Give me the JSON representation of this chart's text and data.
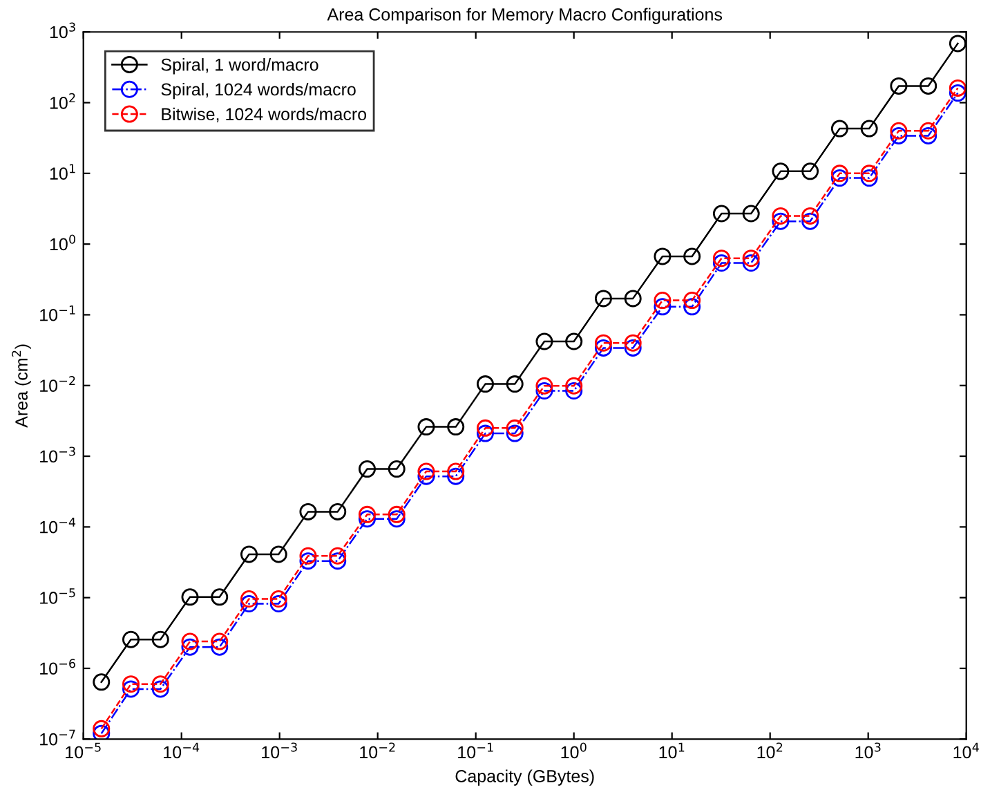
{
  "chart_data": {
    "type": "line",
    "title": "Area Comparison for Memory Macro Configurations",
    "xlabel": "Capacity (GBytes)",
    "ylabel": "Area (cm$^{2}$)",
    "log": "xy",
    "grid": false,
    "legend": "top left",
    "marker": "circle",
    "x": [
      1.526e-05,
      3.052e-05,
      6.104e-05,
      0.0001221,
      0.0002441,
      0.0004883,
      0.0009766,
      0.001953,
      0.003906,
      0.007813,
      0.015625,
      0.03125,
      0.0625,
      0.125,
      0.25,
      0.5,
      1,
      2,
      4,
      8,
      16,
      32,
      64,
      128,
      256,
      512,
      1024,
      2048,
      4096,
      8192
    ],
    "series": [
      {
        "name": "Spiral, 1 word/macro",
        "color": "#000000",
        "line_style": "solid",
        "values": [
          6.4e-07,
          2.56e-06,
          2.56e-06,
          1.02e-05,
          1.02e-05,
          4.1e-05,
          4.1e-05,
          0.000164,
          0.000164,
          0.00066,
          0.00066,
          0.0026,
          0.0026,
          0.0105,
          0.0105,
          0.042,
          0.042,
          0.17,
          0.17,
          0.67,
          0.67,
          2.7,
          2.7,
          10.7,
          10.7,
          43,
          43,
          172,
          172,
          687
        ]
      },
      {
        "name": "Spiral, 1024 words/macro",
        "color": "#0000ff",
        "line_style": "dashdot",
        "values": [
          1.2e-07,
          5.1e-07,
          5.1e-07,
          2e-06,
          2e-06,
          8.2e-06,
          8.2e-06,
          3.3e-05,
          3.3e-05,
          0.00013,
          0.00013,
          0.00052,
          0.00052,
          0.0021,
          0.0021,
          0.0084,
          0.0084,
          0.034,
          0.034,
          0.13,
          0.13,
          0.54,
          0.54,
          2.1,
          2.1,
          8.6,
          8.6,
          34,
          34,
          137
        ]
      },
      {
        "name": "Bitwise, 1024 words/macro",
        "color": "#ff0000",
        "line_style": "dashed",
        "values": [
          1.4e-07,
          6e-07,
          6e-07,
          2.4e-06,
          2.4e-06,
          9.6e-06,
          9.6e-06,
          3.9e-05,
          3.9e-05,
          0.00015,
          0.00015,
          0.00061,
          0.00061,
          0.0025,
          0.0025,
          0.0099,
          0.0099,
          0.04,
          0.04,
          0.16,
          0.16,
          0.63,
          0.63,
          2.5,
          2.5,
          10,
          10,
          40,
          40,
          161
        ]
      }
    ],
    "xlim": [
      1e-05,
      10000.0
    ],
    "ylim": [
      1e-07,
      1000.0
    ],
    "xticks": [
      {
        "value": 1e-05,
        "label": "10$^{−5}$"
      },
      {
        "value": 0.0001,
        "label": "10$^{−4}$"
      },
      {
        "value": 0.001,
        "label": "10$^{−3}$"
      },
      {
        "value": 0.01,
        "label": "10$^{−2}$"
      },
      {
        "value": 0.1,
        "label": "10$^{−1}$"
      },
      {
        "value": 1,
        "label": "10$^{0}$"
      },
      {
        "value": 10,
        "label": "10$^{1}$"
      },
      {
        "value": 100,
        "label": "10$^{2}$"
      },
      {
        "value": 1000,
        "label": "10$^{3}$"
      },
      {
        "value": 10000,
        "label": "10$^{4}$"
      }
    ],
    "yticks": [
      {
        "value": 1e-07,
        "label": "10$^{−7}$"
      },
      {
        "value": 1e-06,
        "label": "10$^{−6}$"
      },
      {
        "value": 1e-05,
        "label": "10$^{−5}$"
      },
      {
        "value": 0.0001,
        "label": "10$^{−4}$"
      },
      {
        "value": 0.001,
        "label": "10$^{−3}$"
      },
      {
        "value": 0.01,
        "label": "10$^{−2}$"
      },
      {
        "value": 0.1,
        "label": "10$^{−1}$"
      },
      {
        "value": 1,
        "label": "10$^{0}$"
      },
      {
        "value": 10,
        "label": "10$^{1}$"
      },
      {
        "value": 100,
        "label": "10$^{2}$"
      },
      {
        "value": 1000,
        "label": "10$^{3}$"
      }
    ]
  }
}
